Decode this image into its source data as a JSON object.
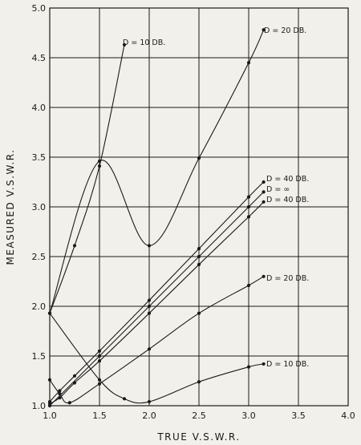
{
  "chart_data": {
    "type": "line",
    "xlabel": "TRUE   V.S.W.R.",
    "ylabel": "MEASURED   V.S.W.R.",
    "xlim": [
      1.0,
      4.0
    ],
    "ylim": [
      1.0,
      5.0
    ],
    "x_ticks": [
      "1.0",
      "1.5",
      "2.0",
      "2.5",
      "3.0",
      "3.5",
      "4.0"
    ],
    "y_ticks": [
      "1.0",
      "1.5",
      "2.0",
      "2.5",
      "3.0",
      "3.5",
      "4.0",
      "4.5",
      "5.0"
    ],
    "grid": true,
    "series": [
      {
        "name": "D = 10 DB.",
        "points": [
          [
            1.0,
            1.93
          ],
          [
            1.25,
            2.61
          ],
          [
            1.5,
            3.41
          ],
          [
            1.75,
            4.63
          ]
        ]
      },
      {
        "name": "D = 20 DB.",
        "points": [
          [
            1.0,
            1.93
          ],
          [
            1.5,
            3.46
          ],
          [
            2.0,
            2.61
          ],
          [
            2.5,
            3.49
          ],
          [
            3.0,
            4.45
          ],
          [
            3.15,
            4.78
          ]
        ]
      },
      {
        "name": "D = 40 DB.",
        "points": [
          [
            1.0,
            1.04
          ],
          [
            1.1,
            1.15
          ],
          [
            1.25,
            1.3
          ],
          [
            1.5,
            1.55
          ],
          [
            2.0,
            2.06
          ],
          [
            2.5,
            2.58
          ],
          [
            3.0,
            3.1
          ],
          [
            3.15,
            3.25
          ]
        ]
      },
      {
        "name": "D = ∞",
        "points": [
          [
            1.0,
            1.0
          ],
          [
            1.5,
            1.5
          ],
          [
            2.0,
            2.0
          ],
          [
            2.5,
            2.5
          ],
          [
            3.0,
            3.0
          ],
          [
            3.15,
            3.15
          ]
        ]
      },
      {
        "name": "D = 40 DB.",
        "points": [
          [
            1.0,
            1.02
          ],
          [
            1.1,
            1.08
          ],
          [
            1.25,
            1.23
          ],
          [
            1.5,
            1.45
          ],
          [
            2.0,
            1.93
          ],
          [
            2.5,
            2.42
          ],
          [
            3.0,
            2.9
          ],
          [
            3.15,
            3.05
          ]
        ]
      },
      {
        "name": "D = 20 DB.",
        "points": [
          [
            1.0,
            1.26
          ],
          [
            1.1,
            1.12
          ],
          [
            1.2,
            1.03
          ],
          [
            1.5,
            1.22
          ],
          [
            2.0,
            1.57
          ],
          [
            2.5,
            1.93
          ],
          [
            3.0,
            2.21
          ],
          [
            3.15,
            2.3
          ]
        ]
      },
      {
        "name": "D = 10 DB.",
        "points": [
          [
            1.0,
            1.93
          ],
          [
            1.5,
            1.26
          ],
          [
            1.75,
            1.07
          ],
          [
            2.0,
            1.04
          ],
          [
            2.5,
            1.24
          ],
          [
            3.0,
            1.39
          ],
          [
            3.15,
            1.42
          ]
        ]
      }
    ],
    "annotations": [
      "D = 10 DB.",
      "D = 20 DB.",
      "D = 40 DB.",
      "D = ∞",
      "D = 40 DB.",
      "D = 20 DB.",
      "D = 10 DB."
    ]
  }
}
